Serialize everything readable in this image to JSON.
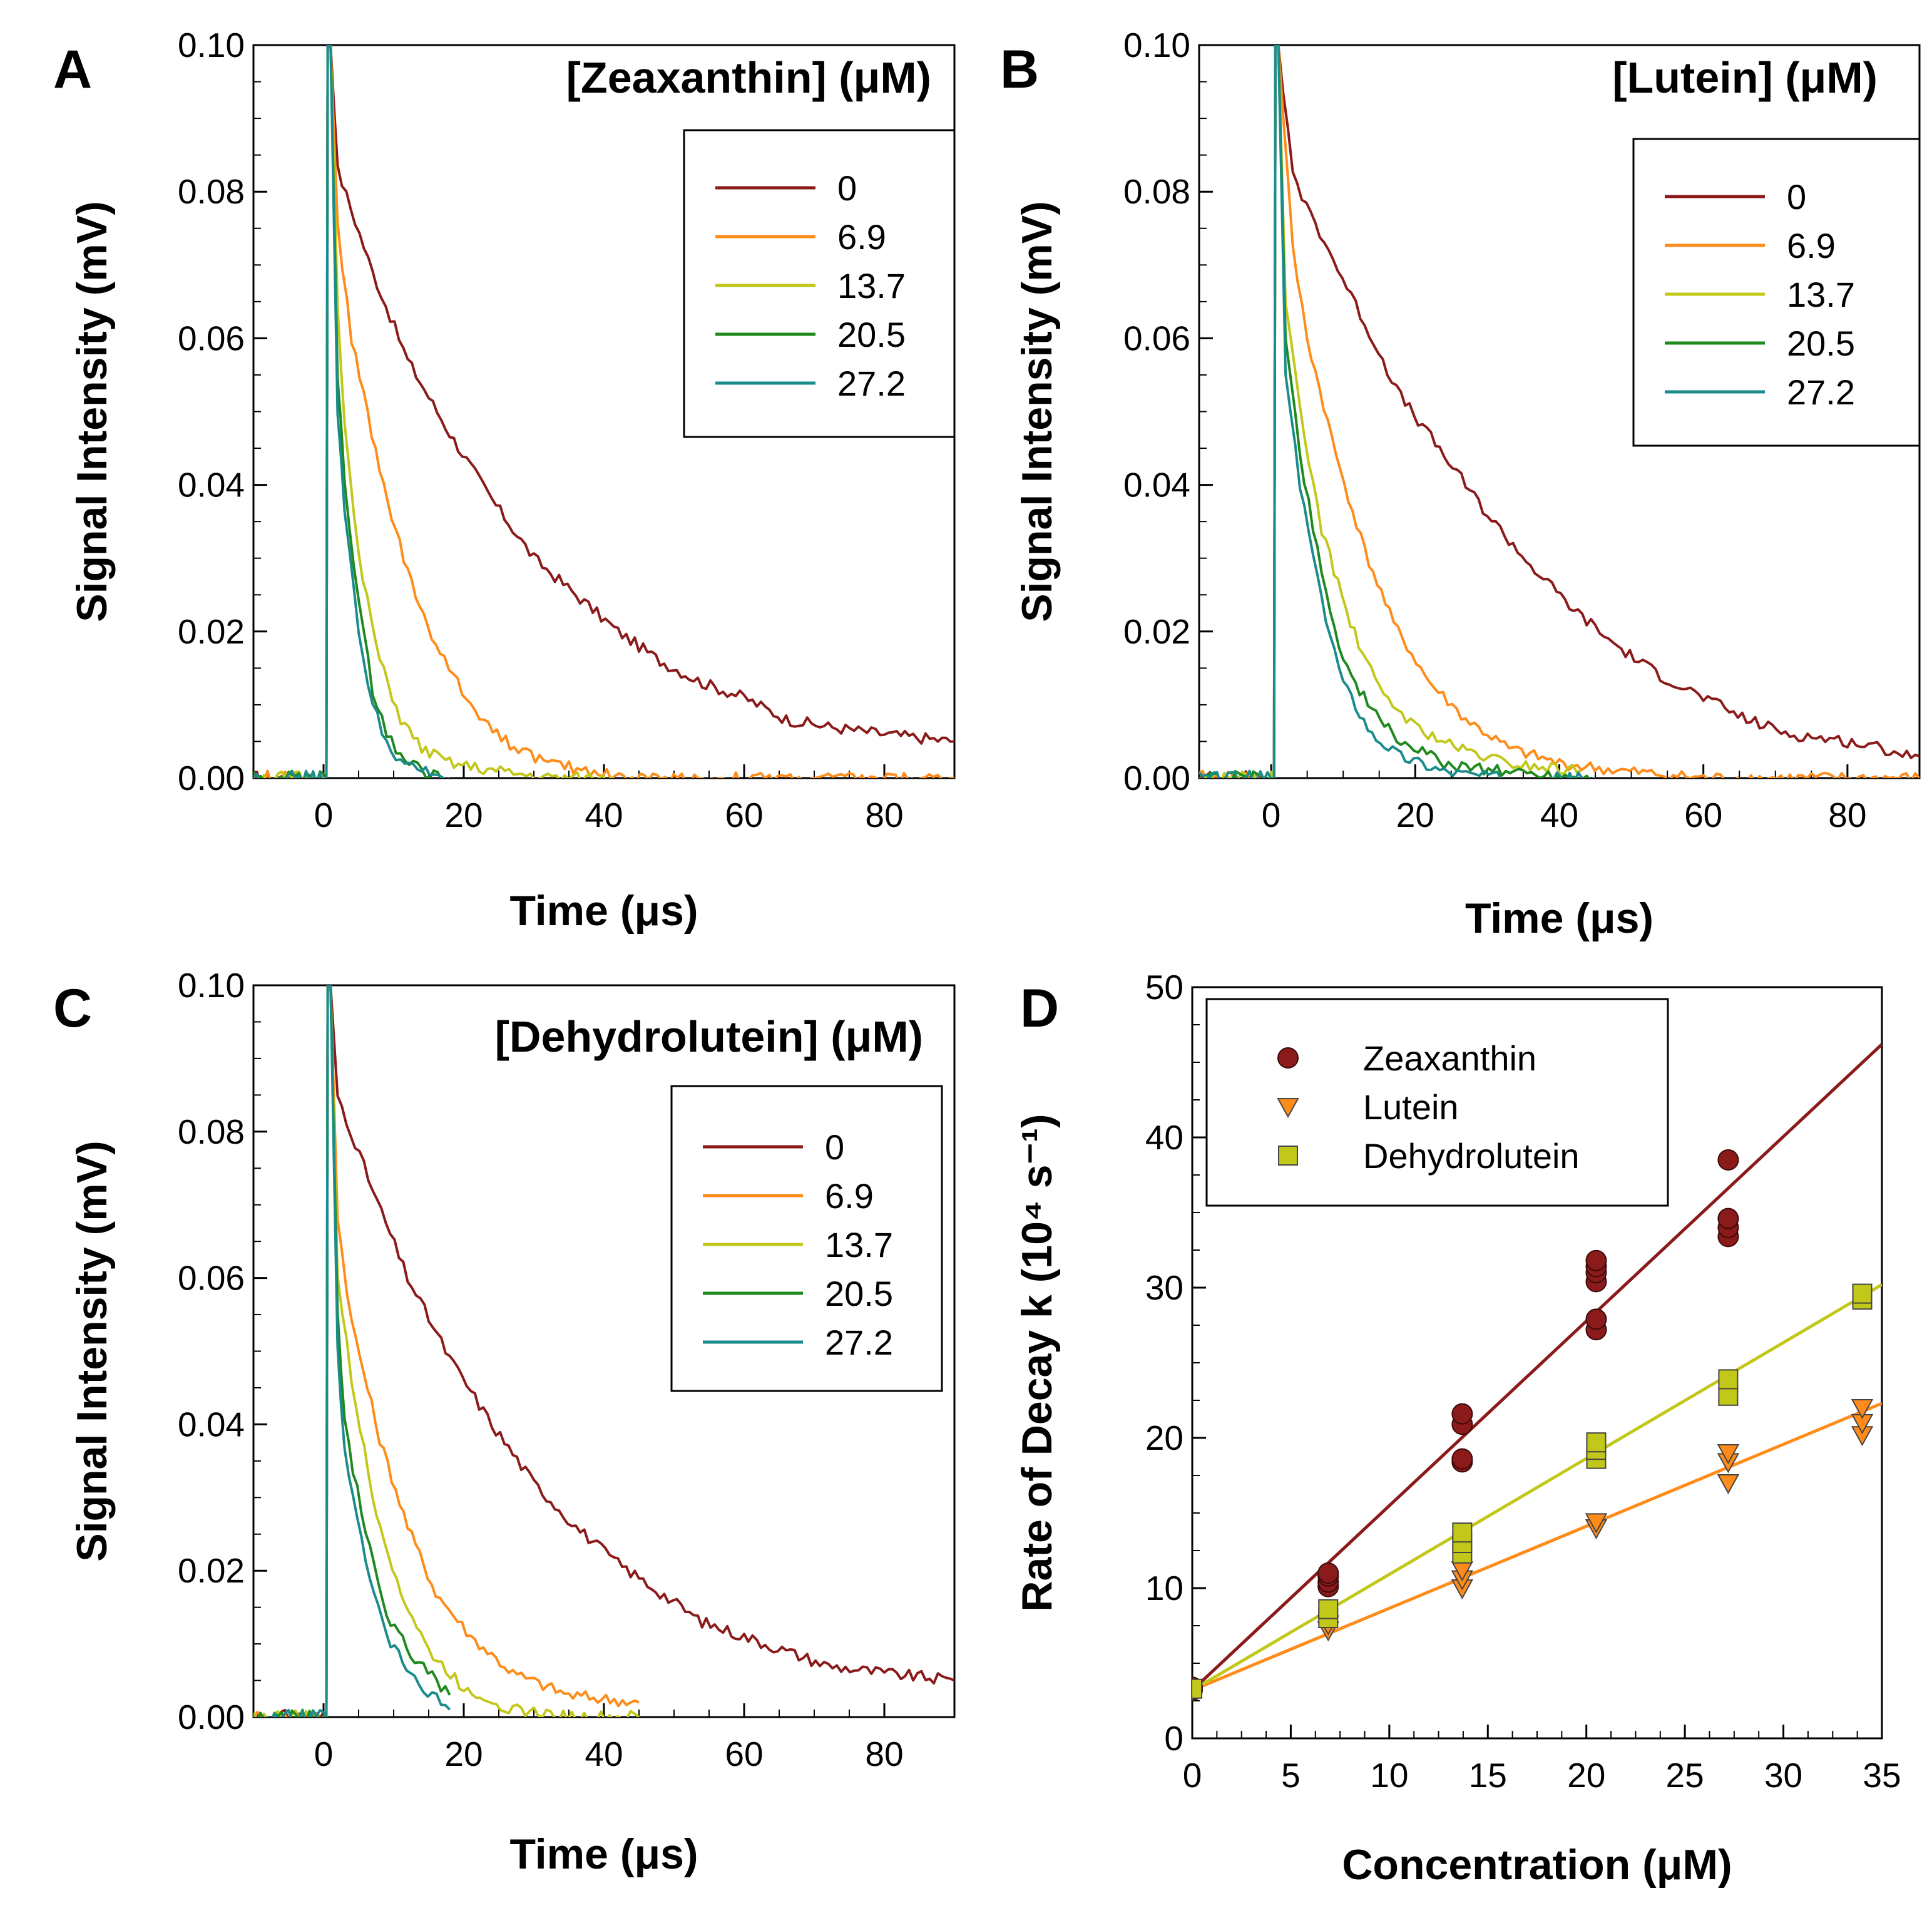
{
  "colors": {
    "c0": "#8b1a1a",
    "c6.9": "#ff8c1a",
    "c13.7": "#c2c81a",
    "c20.5": "#1e8a1e",
    "c27.2": "#1a8c8c",
    "zeaxanthin": "#8b1a1a",
    "lutein": "#ff8c1a",
    "dehydrolutein": "#c2c81a"
  },
  "chart_data": [
    {
      "panel": "A",
      "type": "line",
      "title": "[Zeaxanthin] (μM)",
      "xlabel": "Time (μs)",
      "ylabel": "Signal Intensity (mV)",
      "xlim": [
        -10,
        90
      ],
      "ylim": [
        0,
        0.1
      ],
      "xticks": [
        "0",
        "20",
        "40",
        "60",
        "80"
      ],
      "yticks": [
        "0.00",
        "0.02",
        "0.04",
        "0.06",
        "0.08",
        "0.10"
      ],
      "legend_position": "top-right",
      "series": [
        {
          "name": "0",
          "color_key": "c0",
          "values": [
            0.1,
            0.083,
            0.069,
            0.057,
            0.047,
            0.038,
            0.03,
            0.025,
            0.02,
            0.016,
            0.013,
            0.011,
            0.008,
            0.007,
            0.006,
            0.005
          ],
          "x": [
            1,
            2,
            7,
            12,
            18,
            24,
            30,
            36,
            42,
            48,
            54,
            60,
            66,
            72,
            80,
            90
          ]
        },
        {
          "name": "6.9",
          "color_key": "c6.9",
          "values": [
            0.1,
            0.075,
            0.06,
            0.042,
            0.028,
            0.018,
            0.01,
            0.005,
            0.002,
            0.001,
            0.0,
            0.0,
            0.0
          ],
          "x": [
            1,
            2,
            4,
            8,
            12,
            16,
            21,
            26,
            32,
            38,
            44,
            60,
            90
          ]
        },
        {
          "name": "13.7",
          "color_key": "c13.7",
          "values": [
            0.1,
            0.065,
            0.048,
            0.03,
            0.016,
            0.008,
            0.004,
            0.002,
            0.001,
            0.0,
            0.0
          ],
          "x": [
            1,
            2,
            3,
            5,
            8,
            11,
            14,
            18,
            24,
            32,
            44
          ]
        },
        {
          "name": "20.5",
          "color_key": "c20.5",
          "values": [
            0.1,
            0.055,
            0.04,
            0.024,
            0.012,
            0.006,
            0.003,
            0.001,
            0.0
          ],
          "x": [
            1,
            2,
            3,
            5,
            7,
            9,
            11,
            14,
            18
          ]
        },
        {
          "name": "27.2",
          "color_key": "c27.2",
          "values": [
            0.1,
            0.05,
            0.036,
            0.02,
            0.01,
            0.005,
            0.002,
            0.001,
            0.0
          ],
          "x": [
            1,
            2,
            3,
            5,
            7,
            9,
            11,
            14,
            18
          ]
        }
      ],
      "baseline_start": -10
    },
    {
      "panel": "B",
      "type": "line",
      "title": "[Lutein] (μM)",
      "xlabel": "Time (μs)",
      "ylabel": "Signal Intensity (mV)",
      "xlim": [
        -10,
        90
      ],
      "ylim": [
        0,
        0.1
      ],
      "xticks": [
        "0",
        "20",
        "40",
        "60",
        "80"
      ],
      "yticks": [
        "0.00",
        "0.02",
        "0.04",
        "0.06",
        "0.08",
        "0.10"
      ],
      "legend_position": "top-right",
      "series": [
        {
          "name": "0",
          "color_key": "c0",
          "values": [
            0.1,
            0.082,
            0.072,
            0.062,
            0.052,
            0.044,
            0.036,
            0.029,
            0.023,
            0.018,
            0.014,
            0.011,
            0.008,
            0.006,
            0.005,
            0.003
          ],
          "x": [
            1,
            3,
            8,
            13,
            18,
            24,
            30,
            36,
            42,
            48,
            54,
            60,
            66,
            72,
            80,
            90
          ]
        },
        {
          "name": "6.9",
          "color_key": "c6.9",
          "values": [
            0.1,
            0.072,
            0.06,
            0.044,
            0.031,
            0.021,
            0.013,
            0.008,
            0.004,
            0.002,
            0.001,
            0.0,
            0.0
          ],
          "x": [
            1,
            3,
            5,
            9,
            13,
            17,
            22,
            27,
            33,
            40,
            48,
            60,
            90
          ]
        },
        {
          "name": "13.7",
          "color_key": "c13.7",
          "values": [
            0.1,
            0.065,
            0.05,
            0.034,
            0.021,
            0.012,
            0.007,
            0.004,
            0.002,
            0.001
          ],
          "x": [
            1,
            2,
            4,
            7,
            11,
            15,
            20,
            26,
            33,
            43
          ]
        },
        {
          "name": "20.5",
          "color_key": "c20.5",
          "values": [
            0.1,
            0.06,
            0.044,
            0.028,
            0.016,
            0.009,
            0.005,
            0.002,
            0.001,
            0.0
          ],
          "x": [
            1,
            2,
            4,
            7,
            10,
            14,
            18,
            24,
            32,
            45
          ]
        },
        {
          "name": "27.2",
          "color_key": "c27.2",
          "values": [
            0.1,
            0.055,
            0.04,
            0.024,
            0.013,
            0.006,
            0.003,
            0.001,
            0.0,
            0.0
          ],
          "x": [
            1,
            2,
            4,
            7,
            10,
            14,
            18,
            24,
            32,
            45
          ]
        }
      ],
      "baseline_start": -10
    },
    {
      "panel": "C",
      "type": "line",
      "title": "[Dehydrolutein] (μM)",
      "xlabel": "Time (μs)",
      "ylabel": "Signal Intensity (mV)",
      "xlim": [
        -10,
        90
      ],
      "ylim": [
        0,
        0.1
      ],
      "xticks": [
        "0",
        "20",
        "40",
        "60",
        "80"
      ],
      "yticks": [
        "0.00",
        "0.02",
        "0.04",
        "0.06",
        "0.08",
        "0.10"
      ],
      "legend_position": "top-right",
      "series": [
        {
          "name": "0",
          "color_key": "c0",
          "values": [
            0.1,
            0.085,
            0.072,
            0.06,
            0.049,
            0.04,
            0.032,
            0.026,
            0.021,
            0.017,
            0.013,
            0.011,
            0.009,
            0.007,
            0.006,
            0.005
          ],
          "x": [
            1,
            2,
            7,
            12,
            18,
            24,
            30,
            36,
            42,
            48,
            54,
            60,
            66,
            72,
            80,
            90
          ]
        },
        {
          "name": "6.9",
          "color_key": "c6.9",
          "values": [
            0.1,
            0.068,
            0.054,
            0.038,
            0.026,
            0.017,
            0.011,
            0.006,
            0.003,
            0.002
          ],
          "x": [
            1,
            2,
            4,
            8,
            12,
            16,
            21,
            27,
            35,
            45
          ]
        },
        {
          "name": "13.7",
          "color_key": "c13.7",
          "values": [
            0.1,
            0.06,
            0.046,
            0.03,
            0.017,
            0.009,
            0.004,
            0.001,
            0.0,
            0.0
          ],
          "x": [
            1,
            2,
            4,
            7,
            11,
            15,
            20,
            27,
            36,
            45
          ]
        },
        {
          "name": "20.5",
          "color_key": "c20.5",
          "values": [
            0.1,
            0.055,
            0.04,
            0.025,
            0.014,
            0.008,
            0.003
          ],
          "x": [
            1,
            2,
            3,
            6,
            9,
            13,
            18
          ]
        },
        {
          "name": "27.2",
          "color_key": "c27.2",
          "values": [
            0.1,
            0.05,
            0.036,
            0.021,
            0.011,
            0.005,
            0.001
          ],
          "x": [
            1,
            2,
            3,
            6,
            9,
            13,
            18
          ]
        }
      ],
      "baseline_start": -10
    },
    {
      "panel": "D",
      "type": "scatter",
      "xlabel": "Concentration (μM)",
      "ylabel": "Rate of Decay k (10⁴ s⁻¹)",
      "xlim": [
        0,
        35
      ],
      "ylim": [
        0,
        50
      ],
      "xticks": [
        "0",
        "5",
        "10",
        "15",
        "20",
        "25",
        "30",
        "35"
      ],
      "yticks": [
        "0",
        "10",
        "20",
        "30",
        "40",
        "50"
      ],
      "legend_position": "top-left",
      "series": [
        {
          "name": "Zeaxanthin",
          "marker": "circle",
          "color_key": "zeaxanthin",
          "x": [
            0,
            0,
            6.9,
            6.9,
            6.9,
            6.9,
            13.7,
            13.7,
            13.7,
            13.7,
            20.5,
            20.5,
            20.5,
            20.5,
            20.5,
            20.5,
            27.2,
            27.2,
            27.2,
            27.2
          ],
          "values": [
            3.2,
            3.4,
            10.1,
            10.4,
            10.8,
            11.0,
            18.4,
            18.6,
            20.9,
            21.6,
            27.2,
            27.9,
            30.4,
            31.0,
            31.4,
            31.8,
            33.4,
            34.0,
            34.6,
            38.5
          ],
          "fit": {
            "x": [
              0,
              35
            ],
            "y": [
              3.2,
              46.2
            ]
          }
        },
        {
          "name": "Lutein",
          "marker": "triangle-down",
          "color_key": "lutein",
          "x": [
            0,
            6.9,
            6.9,
            13.7,
            13.7,
            13.7,
            20.5,
            20.5,
            27.2,
            27.2,
            27.2,
            34.0,
            34.0,
            34.0
          ],
          "values": [
            3.2,
            7.2,
            7.6,
            10.0,
            10.6,
            11.2,
            14.0,
            14.4,
            17.0,
            18.4,
            19.0,
            20.2,
            21.0,
            22.0
          ],
          "fit": {
            "x": [
              0,
              35
            ],
            "y": [
              3.2,
              22.3
            ]
          }
        },
        {
          "name": "Dehydrolutein",
          "marker": "square",
          "color_key": "dehydrolutein",
          "x": [
            0,
            6.9,
            6.9,
            13.7,
            13.7,
            13.7,
            20.5,
            20.5,
            20.5,
            27.2,
            27.2,
            34.0,
            34.0
          ],
          "values": [
            3.3,
            8.0,
            8.6,
            12.3,
            13.0,
            13.7,
            18.6,
            19.2,
            19.7,
            22.8,
            23.9,
            29.2,
            29.6
          ],
          "fit": {
            "x": [
              0,
              35
            ],
            "y": [
              3.2,
              30.2
            ]
          }
        }
      ]
    }
  ]
}
